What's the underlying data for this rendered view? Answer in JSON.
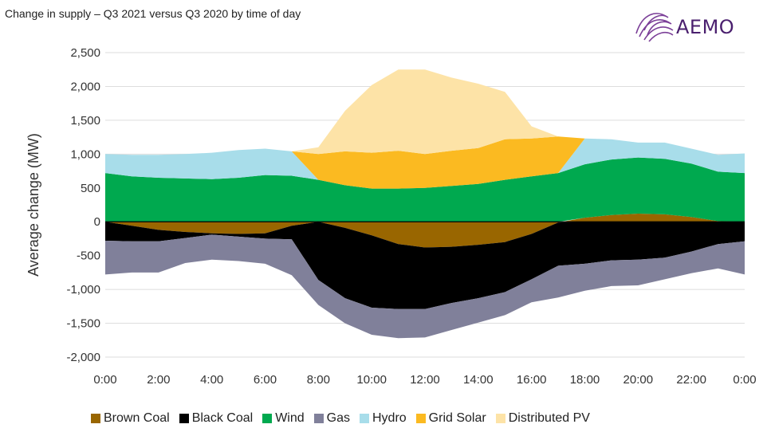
{
  "chart_data": {
    "type": "area",
    "title": "Change in supply – Q3 2021 versus Q3 2020 by time of day",
    "ylabel": "Average change (MW)",
    "xlabel": "",
    "ylim": [
      -2000,
      2500
    ],
    "yticks": [
      2500,
      2000,
      1500,
      1000,
      500,
      0,
      -500,
      -1000,
      -1500,
      -2000
    ],
    "ytick_labels": [
      "2,500",
      "2,000",
      "1,500",
      "1,000",
      "500",
      "0",
      "-500",
      "-1,000",
      "-1,500",
      "-2,000"
    ],
    "xlim": [
      0,
      24
    ],
    "xticks": [
      0,
      2,
      4,
      6,
      8,
      10,
      12,
      14,
      16,
      18,
      20,
      22,
      24
    ],
    "xtick_labels": [
      "0:00",
      "2:00",
      "4:00",
      "6:00",
      "8:00",
      "10:00",
      "12:00",
      "14:00",
      "16:00",
      "18:00",
      "20:00",
      "22:00",
      "0:00"
    ],
    "grid": "horizontal",
    "legend_position": "bottom",
    "x": [
      0,
      1,
      2,
      3,
      4,
      5,
      6,
      7,
      8,
      9,
      10,
      11,
      12,
      13,
      14,
      15,
      16,
      17,
      18,
      19,
      20,
      21,
      22,
      23,
      24
    ],
    "series": [
      {
        "name": "Brown Coal",
        "color": "#996600",
        "values": [
          0,
          -60,
          -120,
          -150,
          -170,
          -180,
          -170,
          -60,
          0,
          -90,
          -200,
          -330,
          -380,
          -370,
          -340,
          -300,
          -180,
          -10,
          60,
          100,
          120,
          110,
          70,
          10,
          0
        ]
      },
      {
        "name": "Black Coal",
        "color": "#000000",
        "values": [
          -280,
          -230,
          -170,
          -90,
          -20,
          -40,
          -80,
          -200,
          -860,
          -1040,
          -1070,
          -960,
          -910,
          -830,
          -790,
          -740,
          -670,
          -640,
          -620,
          -570,
          -560,
          -530,
          -440,
          -330,
          -290
        ]
      },
      {
        "name": "Wind",
        "color": "#00a94f",
        "values": [
          720,
          670,
          650,
          640,
          630,
          650,
          690,
          680,
          620,
          540,
          490,
          490,
          500,
          530,
          560,
          620,
          670,
          720,
          790,
          820,
          830,
          820,
          790,
          730,
          720
        ]
      },
      {
        "name": "Gas",
        "color": "#80809a",
        "values": [
          -500,
          -460,
          -460,
          -370,
          -370,
          -360,
          -370,
          -530,
          -370,
          -370,
          -400,
          -430,
          -420,
          -400,
          -360,
          -340,
          -340,
          -470,
          -400,
          -380,
          -380,
          -320,
          -320,
          -360,
          -490
        ]
      },
      {
        "name": "Hydro",
        "color": "#a8ddea",
        "values": [
          280,
          320,
          340,
          360,
          390,
          410,
          390,
          360,
          0,
          0,
          0,
          0,
          0,
          0,
          0,
          0,
          0,
          0,
          380,
          300,
          220,
          240,
          220,
          250,
          290
        ]
      },
      {
        "name": "Grid Solar",
        "color": "#fbba21",
        "values": [
          0,
          0,
          0,
          0,
          0,
          0,
          0,
          0,
          380,
          500,
          530,
          560,
          500,
          520,
          530,
          600,
          560,
          540,
          0,
          0,
          0,
          0,
          0,
          0,
          0
        ]
      },
      {
        "name": "Distributed PV",
        "color": "#fde3a7",
        "values": [
          0,
          0,
          0,
          0,
          0,
          0,
          0,
          0,
          100,
          600,
          1000,
          1200,
          1250,
          1080,
          950,
          700,
          180,
          0,
          0,
          0,
          0,
          0,
          0,
          0,
          0
        ]
      }
    ]
  },
  "logo": {
    "text": "AEMO",
    "color": "#4a1f6e"
  }
}
